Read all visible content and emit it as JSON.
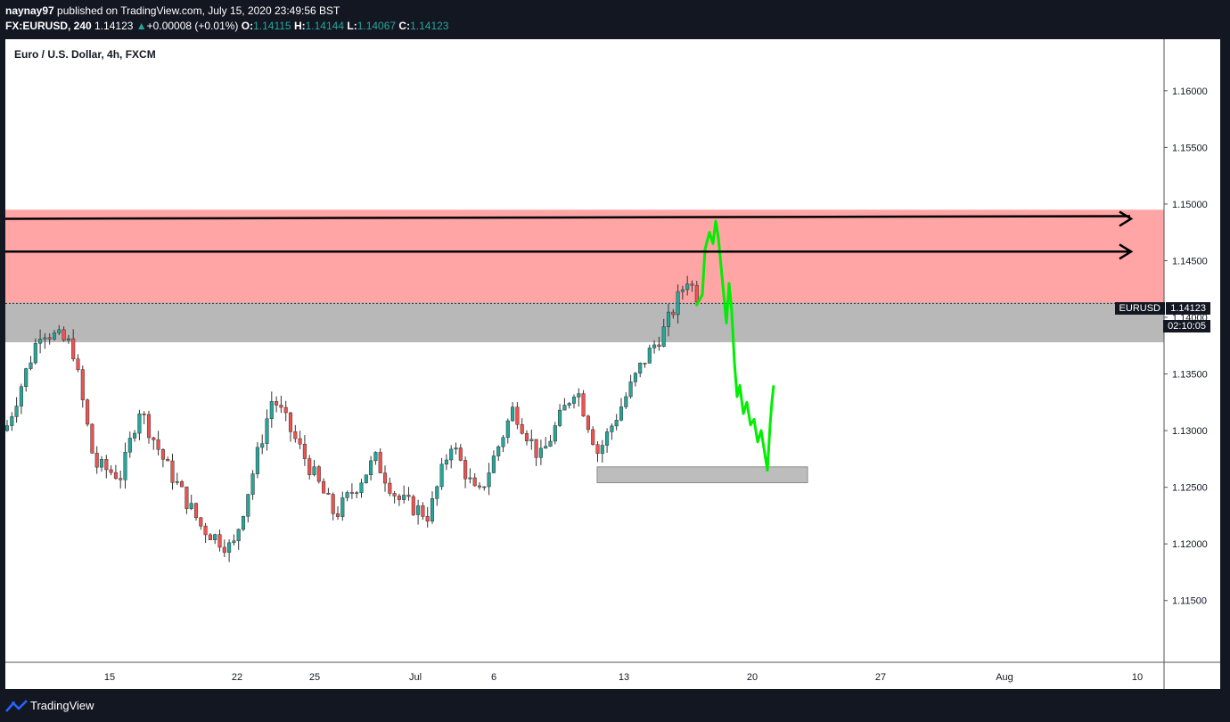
{
  "header": {
    "publisher": "naynay97",
    "published_text": "published on TradingView.com, July 15, 2020 23:49:56 BST",
    "symbol": "FX:EURUSD, 240",
    "last": "1.14123",
    "change_arrow": "▲",
    "change": "+0.00008 (+0.01%)",
    "o_label": "O:",
    "o": "1.14115",
    "h_label": "H:",
    "h": "1.14144",
    "l_label": "L:",
    "l": "1.14067",
    "c_label": "C:",
    "c": "1.14123"
  },
  "chart": {
    "title": "Euro / U.S. Dollar, 4h, FXCM",
    "price_tag_symbol": "EURUSD",
    "price_tag_value": "1.14123",
    "countdown": "02:10:05",
    "colors": {
      "up": "#26a69a",
      "down": "#ef5350",
      "resistance_zone": "#ffa5a5",
      "support_zone": "#b8b8b8",
      "projection": "#00ee00"
    }
  },
  "chart_data": {
    "type": "candlestick",
    "title": "Euro / U.S. Dollar, 4h, FXCM",
    "y_ticks": [
      "1.16000",
      "1.15500",
      "1.15000",
      "1.14500",
      "1.14000",
      "1.13500",
      "1.13000",
      "1.12500",
      "1.12000",
      "1.11500"
    ],
    "x_ticks": [
      "15",
      "22",
      "25",
      "Jul",
      "6",
      "13",
      "20",
      "27",
      "Aug",
      "10"
    ],
    "ylim": [
      1.11,
      1.163
    ],
    "zones": [
      {
        "name": "resistance-zone",
        "from": 1.1413,
        "to": 1.1495
      },
      {
        "name": "support-zone",
        "from": 1.1378,
        "to": 1.1413
      },
      {
        "name": "target-zone",
        "from": 1.1254,
        "to": 1.1268
      }
    ],
    "horizontal_arrows": [
      1.1487,
      1.1458
    ],
    "current_price": 1.14123
  },
  "footer": {
    "brand": "TradingView"
  }
}
